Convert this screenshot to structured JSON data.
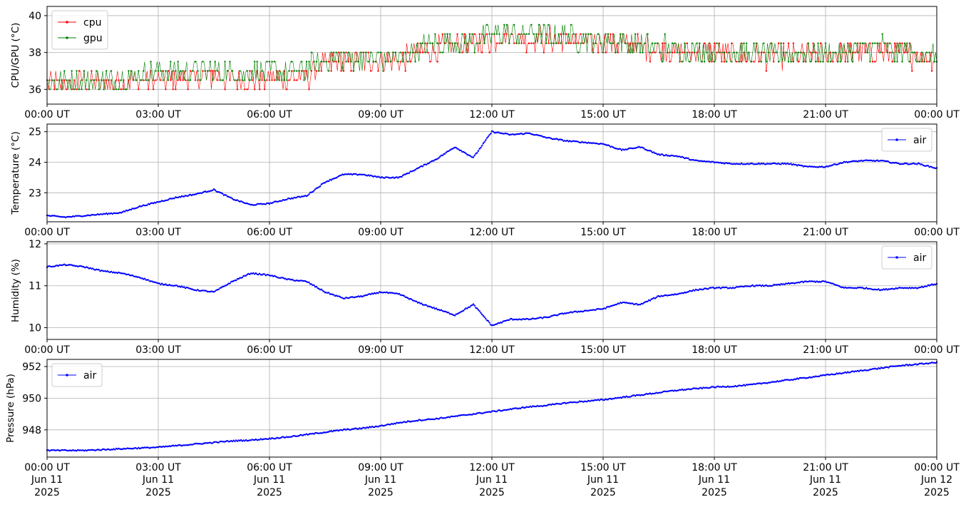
{
  "colors": {
    "cpu": "#ff0000",
    "gpu": "#008000",
    "air": "#0000ff",
    "grid": "#b0b0b0",
    "frame": "#000000"
  },
  "x_tick_labels": [
    "00:00 UT",
    "03:00 UT",
    "06:00 UT",
    "09:00 UT",
    "12:00 UT",
    "15:00 UT",
    "18:00 UT",
    "21:00 UT",
    "00:00 UT"
  ],
  "x_date_lines": [
    [
      "Jun 11",
      "2025"
    ],
    [
      "Jun 11",
      "2025"
    ],
    [
      "Jun 11",
      "2025"
    ],
    [
      "Jun 11",
      "2025"
    ],
    [
      "Jun 11",
      "2025"
    ],
    [
      "Jun 11",
      "2025"
    ],
    [
      "Jun 11",
      "2025"
    ],
    [
      "Jun 11",
      "2025"
    ],
    [
      "Jun 12",
      "2025"
    ]
  ],
  "chart_data": [
    {
      "type": "line",
      "ylabel": "CPU/GPU (°C)",
      "xlim": [
        "2025-06-11 00:00",
        "2025-06-12 00:00"
      ],
      "ylim": [
        35.2,
        40.5
      ],
      "yticks": [
        36,
        38,
        40
      ],
      "grid": true,
      "legend": "top-left",
      "x_hours": [
        0,
        0.5,
        1,
        1.5,
        2,
        2.5,
        3,
        3.5,
        4,
        4.5,
        5,
        5.5,
        6,
        6.5,
        7,
        7.5,
        8,
        8.5,
        9,
        9.5,
        10,
        10.5,
        11,
        11.5,
        12,
        12.5,
        13,
        13.5,
        14,
        14.5,
        15,
        15.5,
        16,
        16.5,
        17,
        17.5,
        18,
        18.5,
        19,
        19.5,
        20,
        20.5,
        21,
        21.5,
        22,
        22.5,
        23,
        23.5,
        24
      ],
      "series": [
        {
          "name": "cpu",
          "color": "#ff0000",
          "values": [
            36.4,
            36.2,
            36.4,
            36.3,
            36.4,
            36.5,
            36.5,
            36.6,
            36.6,
            36.7,
            36.5,
            36.5,
            36.6,
            36.6,
            36.7,
            37.4,
            37.5,
            37.6,
            37.6,
            37.6,
            38.0,
            38.2,
            38.3,
            38.4,
            38.7,
            38.9,
            38.8,
            38.7,
            38.8,
            38.6,
            38.6,
            38.5,
            38.3,
            38.2,
            38.1,
            38.0,
            38.0,
            37.9,
            37.8,
            37.8,
            37.8,
            37.8,
            37.8,
            37.9,
            38.0,
            38.0,
            37.9,
            37.8,
            37.7
          ]
        },
        {
          "name": "gpu",
          "color": "#008000",
          "values": [
            36.5,
            36.3,
            36.5,
            36.5,
            36.6,
            36.8,
            36.9,
            37.0,
            37.0,
            37.0,
            36.9,
            36.9,
            37.0,
            37.0,
            37.1,
            37.6,
            37.7,
            37.7,
            37.7,
            37.7,
            38.2,
            38.4,
            38.5,
            38.6,
            38.9,
            39.1,
            39.0,
            38.9,
            38.9,
            38.7,
            38.7,
            38.6,
            38.4,
            38.3,
            38.2,
            38.1,
            38.1,
            38.0,
            37.9,
            37.9,
            37.9,
            37.9,
            37.9,
            38.0,
            38.2,
            38.3,
            38.0,
            37.9,
            37.8
          ]
        }
      ]
    },
    {
      "type": "line",
      "ylabel": "Temperature (°C)",
      "xlim": [
        "2025-06-11 00:00",
        "2025-06-12 00:00"
      ],
      "ylim": [
        22.05,
        25.25
      ],
      "yticks": [
        23,
        24,
        25
      ],
      "grid": true,
      "legend": "top-right",
      "x_hours": [
        0,
        0.5,
        1,
        1.5,
        2,
        2.5,
        3,
        3.5,
        4,
        4.5,
        5,
        5.5,
        6,
        6.5,
        7,
        7.5,
        8,
        8.5,
        9,
        9.5,
        10,
        10.5,
        11,
        11.5,
        12,
        12.5,
        13,
        13.5,
        14,
        14.5,
        15,
        15.5,
        16,
        16.5,
        17,
        17.5,
        18,
        18.5,
        19,
        19.5,
        20,
        20.5,
        21,
        21.5,
        22,
        22.5,
        23,
        23.5,
        24
      ],
      "series": [
        {
          "name": "air",
          "color": "#0000ff",
          "values": [
            22.25,
            22.2,
            22.25,
            22.3,
            22.35,
            22.55,
            22.7,
            22.85,
            22.95,
            23.1,
            22.8,
            22.6,
            22.65,
            22.8,
            22.9,
            23.35,
            23.6,
            23.6,
            23.5,
            23.5,
            23.8,
            24.1,
            24.5,
            24.15,
            25.0,
            24.9,
            24.95,
            24.8,
            24.7,
            24.65,
            24.6,
            24.4,
            24.5,
            24.25,
            24.2,
            24.05,
            24.0,
            23.95,
            23.95,
            23.95,
            23.95,
            23.85,
            23.85,
            24.0,
            24.05,
            24.05,
            23.95,
            23.95,
            23.8
          ]
        }
      ]
    },
    {
      "type": "line",
      "ylabel": "Humidity (%)",
      "xlim": [
        "2025-06-11 00:00",
        "2025-06-12 00:00"
      ],
      "ylim": [
        9.72,
        12.05
      ],
      "yticks": [
        10,
        11,
        12
      ],
      "grid": true,
      "legend": "top-right",
      "x_hours": [
        0,
        0.5,
        1,
        1.5,
        2,
        2.5,
        3,
        3.5,
        4,
        4.5,
        5,
        5.5,
        6,
        6.5,
        7,
        7.5,
        8,
        8.5,
        9,
        9.5,
        10,
        10.5,
        11,
        11.5,
        12,
        12.5,
        13,
        13.5,
        14,
        14.5,
        15,
        15.5,
        16,
        16.5,
        17,
        17.5,
        18,
        18.5,
        19,
        19.5,
        20,
        20.5,
        21,
        21.5,
        22,
        22.5,
        23,
        23.5,
        24
      ],
      "series": [
        {
          "name": "air",
          "color": "#0000ff",
          "values": [
            11.45,
            11.5,
            11.45,
            11.35,
            11.3,
            11.2,
            11.05,
            11.0,
            10.9,
            10.85,
            11.1,
            11.3,
            11.25,
            11.15,
            11.1,
            10.85,
            10.7,
            10.75,
            10.85,
            10.8,
            10.6,
            10.45,
            10.3,
            10.55,
            10.05,
            10.2,
            10.2,
            10.25,
            10.35,
            10.4,
            10.45,
            10.6,
            10.55,
            10.75,
            10.8,
            10.9,
            10.95,
            10.95,
            11.0,
            11.0,
            11.05,
            11.1,
            11.1,
            10.95,
            10.95,
            10.9,
            10.95,
            10.95,
            11.05
          ]
        }
      ]
    },
    {
      "type": "line",
      "ylabel": "Pressure (hPa)",
      "xlim": [
        "2025-06-11 00:00",
        "2025-06-12 00:00"
      ],
      "ylim": [
        946.28,
        952.45
      ],
      "yticks": [
        948,
        950,
        952
      ],
      "grid": true,
      "legend": "top-left",
      "x_hours": [
        0,
        0.5,
        1,
        1.5,
        2,
        2.5,
        3,
        3.5,
        4,
        4.5,
        5,
        5.5,
        6,
        6.5,
        7,
        7.5,
        8,
        8.5,
        9,
        9.5,
        10,
        10.5,
        11,
        11.5,
        12,
        12.5,
        13,
        13.5,
        14,
        14.5,
        15,
        15.5,
        16,
        16.5,
        17,
        17.5,
        18,
        18.5,
        19,
        19.5,
        20,
        20.5,
        21,
        21.5,
        22,
        22.5,
        23,
        23.5,
        24
      ],
      "series": [
        {
          "name": "air",
          "color": "#0000ff",
          "values": [
            946.7,
            946.7,
            946.7,
            946.75,
            946.8,
            946.85,
            946.9,
            947.0,
            947.1,
            947.2,
            947.3,
            947.35,
            947.45,
            947.55,
            947.7,
            947.85,
            948.0,
            948.1,
            948.25,
            948.45,
            948.6,
            948.7,
            948.85,
            949.0,
            949.15,
            949.3,
            949.45,
            949.55,
            949.7,
            949.8,
            949.9,
            950.05,
            950.2,
            950.35,
            950.5,
            950.6,
            950.7,
            950.75,
            950.85,
            951.0,
            951.15,
            951.3,
            951.45,
            951.6,
            951.75,
            951.9,
            952.05,
            952.15,
            952.25
          ]
        }
      ]
    }
  ]
}
